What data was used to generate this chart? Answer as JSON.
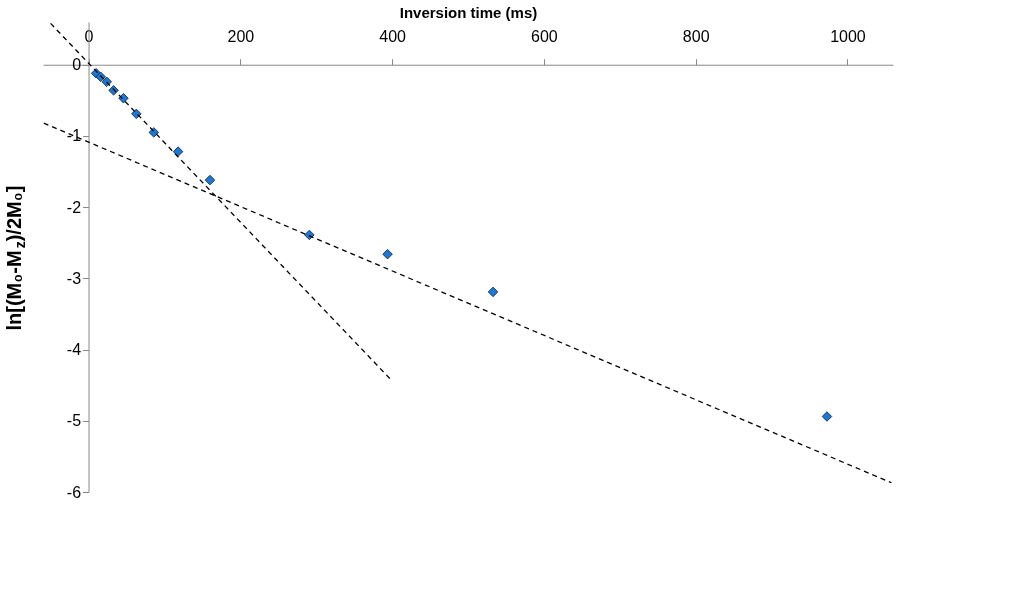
{
  "chart_data": {
    "type": "scatter",
    "xlabel": "Inversion time (ms)",
    "ylabel": "ln[(M₀-M$_{z}$)/2M₀]",
    "xlim": [
      -60,
      1060
    ],
    "ylim": [
      -6,
      0.6
    ],
    "xticks": [
      0,
      200,
      400,
      600,
      800,
      1000
    ],
    "yticks": [
      0,
      -1,
      -2,
      -3,
      -4,
      -5,
      -6
    ],
    "grid": false,
    "legend": false,
    "series": [
      {
        "type": "scatter",
        "color": "#1f77d0",
        "marker": "diamond",
        "x": [
          10,
          16,
          24,
          33,
          46,
          63,
          86,
          118,
          160,
          291,
          394,
          533,
          973
        ],
        "values": [
          -0.12,
          -0.17,
          -0.24,
          -0.36,
          -0.47,
          -0.69,
          -0.95,
          -1.22,
          -1.62,
          -2.39,
          -2.66,
          -3.19,
          -4.94
        ]
      },
      {
        "type": "line",
        "color": "#000000",
        "line_style": "dashed",
        "x": [
          -50,
          400
        ],
        "values": [
          0.58,
          -4.44
        ]
      },
      {
        "type": "line",
        "color": "#000000",
        "line_style": "dashed",
        "x": [
          -59,
          1058
        ],
        "values": [
          -0.82,
          -5.87
        ]
      }
    ]
  }
}
